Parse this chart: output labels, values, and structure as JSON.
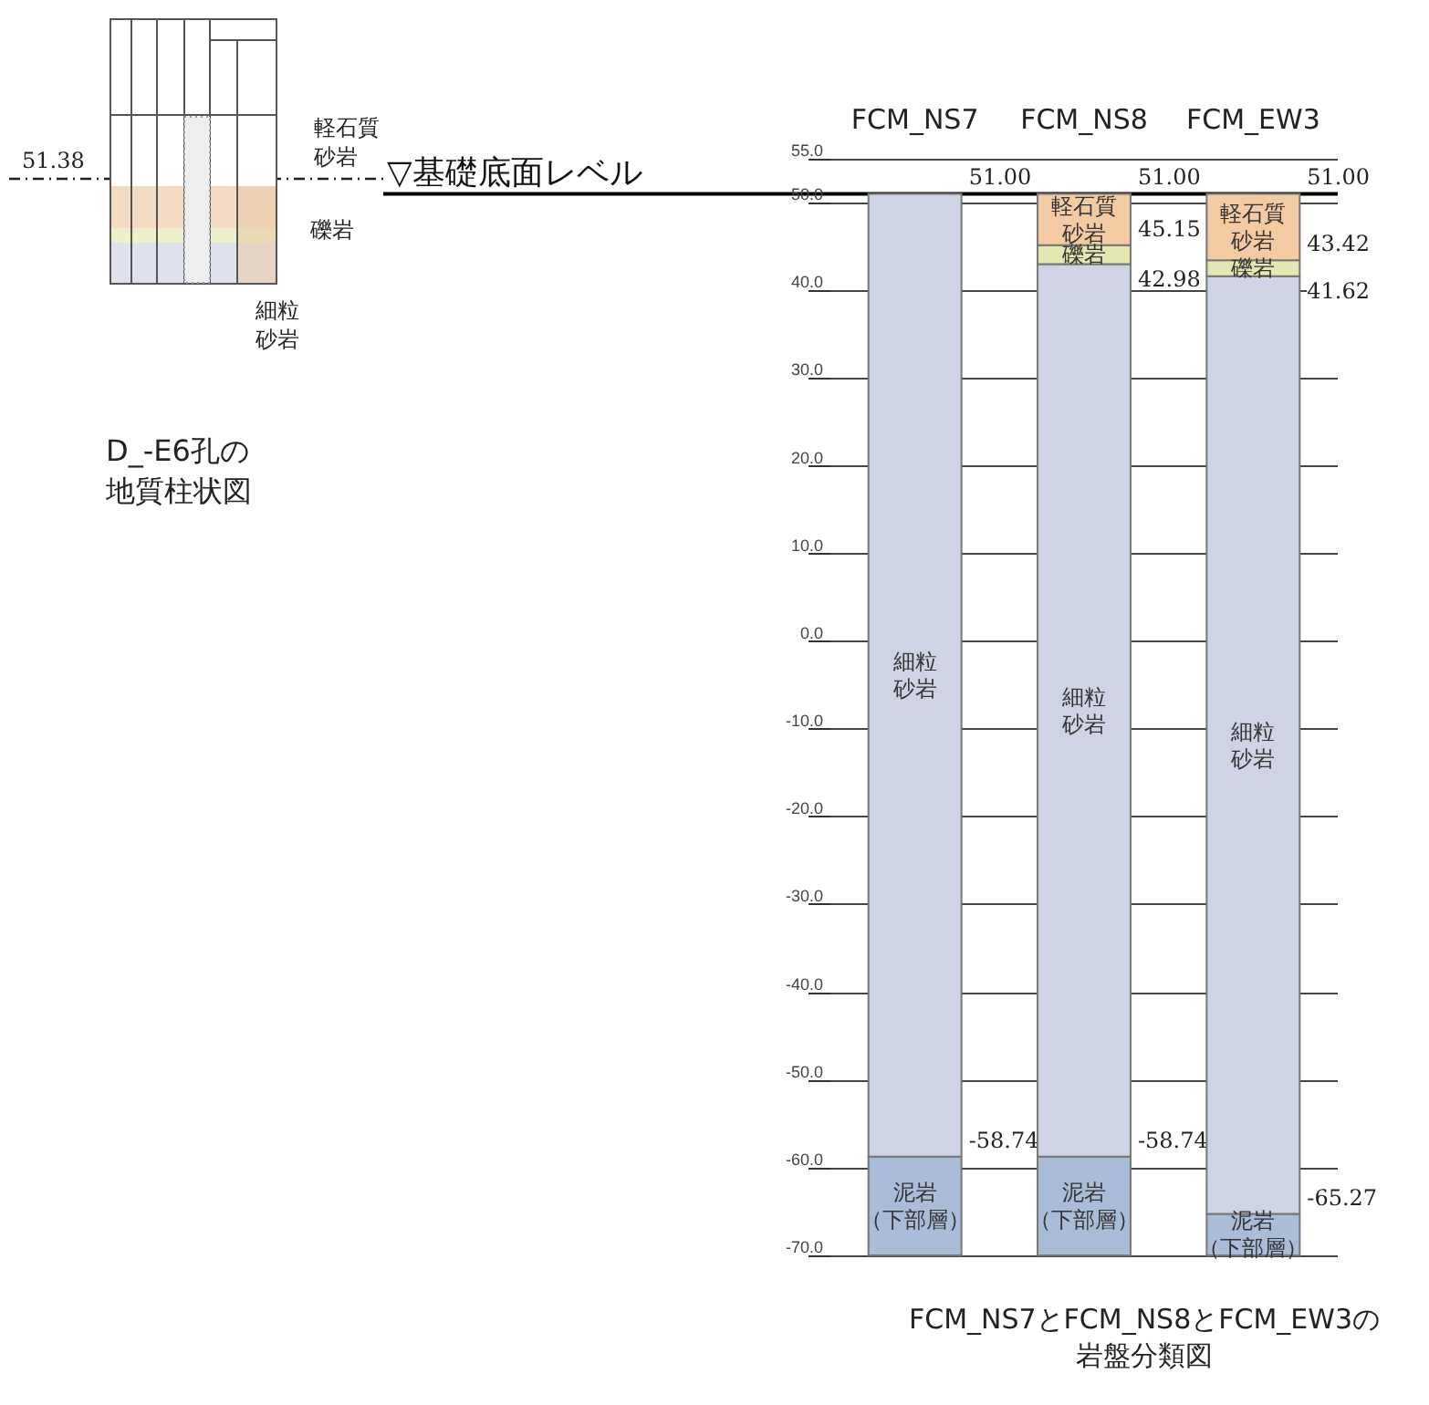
{
  "chart_data": {
    "type": "bar",
    "title": "FCM_NS7とFCM_NS8とFCM_EW3の岩盤分類図",
    "categories": [
      "FCM_NS7",
      "FCM_NS8",
      "FCM_EW3"
    ],
    "series": [
      {
        "name": "泥岩（下部層）",
        "color": "#a9bcd8",
        "base": [
          -70,
          -70,
          -70
        ],
        "values": [
          11.26,
          11.26,
          4.73
        ]
      },
      {
        "name": "細粒砂岩",
        "color": "#cfd3e6",
        "base": [
          -58.74,
          -58.74,
          -65.27
        ],
        "values": [
          109.74,
          101.72,
          106.89
        ]
      },
      {
        "name": "礫岩",
        "color": "#e4e7b0",
        "base": [
          null,
          42.98,
          41.62
        ],
        "values": [
          null,
          2.17,
          1.8
        ]
      },
      {
        "name": "軽石質砂岩",
        "color": "#f2cba3",
        "base": [
          null,
          45.15,
          43.42
        ],
        "values": [
          null,
          5.85,
          7.58
        ]
      }
    ],
    "ylim": [
      -70,
      55
    ],
    "yticks": [
      {
        "value": -70,
        "label": "-70.0"
      },
      {
        "value": -60,
        "label": "-60.0"
      },
      {
        "value": -50,
        "label": "-50.0"
      },
      {
        "value": -40,
        "label": "-40.0"
      },
      {
        "value": -30,
        "label": "-30.0"
      },
      {
        "value": -20,
        "label": "-20.0"
      },
      {
        "value": -10,
        "label": "-10.0"
      },
      {
        "value": 0,
        "label": "0.0"
      },
      {
        "value": 10,
        "label": "10.0"
      },
      {
        "value": 20,
        "label": "20.0"
      },
      {
        "value": 30,
        "label": "30.0"
      },
      {
        "value": 40,
        "label": "40.0"
      },
      {
        "value": 50,
        "label": "50.0"
      },
      {
        "value": 55,
        "label": "55.0"
      }
    ],
    "grid": "y",
    "ref_lines": [
      {
        "axis": "y",
        "value": 51,
        "label": "▽基礎底面レベル"
      }
    ],
    "annotations": [
      {
        "text": "51.00",
        "x": "FCM_NS7",
        "y": 51
      },
      {
        "text": "-58.74",
        "x": "FCM_NS7",
        "y": -58.74
      },
      {
        "text": "51.00",
        "x": "FCM_NS8",
        "y": 51
      },
      {
        "text": "45.15",
        "x": "FCM_NS8",
        "y": 45.15
      },
      {
        "text": "42.98",
        "x": "FCM_NS8",
        "y": 42.98
      },
      {
        "text": "-58.74",
        "x": "FCM_NS8",
        "y": -58.74
      },
      {
        "text": "51.00",
        "x": "FCM_EW3",
        "y": 51
      },
      {
        "text": "43.42",
        "x": "FCM_EW3",
        "y": 43.42
      },
      {
        "text": "41.62",
        "x": "FCM_EW3",
        "y": 41.62
      },
      {
        "text": "-65.27",
        "x": "FCM_EW3",
        "y": -65.27
      },
      "51.38",
      "軽石質砂岩",
      "礫岩",
      "細粒砂岩",
      "D_-E6孔の地質柱状図"
    ]
  }
}
